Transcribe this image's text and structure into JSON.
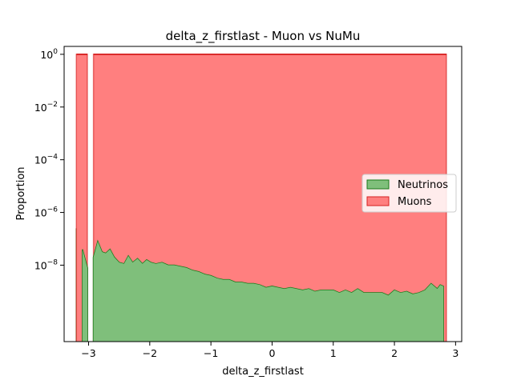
{
  "chart_data": {
    "type": "area",
    "title": "delta_z_firstlast - Muon vs NuMu",
    "xlabel": "delta_z_firstlast",
    "ylabel": "Proportion",
    "xlim": [
      -3.4,
      3.1
    ],
    "ylim_exp": [
      -10.9,
      0.3
    ],
    "yscale": "log",
    "x_ticks": [
      -3,
      -2,
      -1,
      0,
      1,
      2,
      3
    ],
    "x_tick_labels": [
      "−3",
      "−2",
      "−1",
      "0",
      "1",
      "2",
      "3"
    ],
    "y_ticks_exp": [
      0,
      -2,
      -4,
      -6,
      -8
    ],
    "y_tick_labels": [
      {
        "base": "10",
        "exp": "0"
      },
      {
        "base": "10",
        "exp": "−2"
      },
      {
        "base": "10",
        "exp": "−4"
      },
      {
        "base": "10",
        "exp": "−6"
      },
      {
        "base": "10",
        "exp": "−8"
      }
    ],
    "grid": false,
    "legend_position": "center-right",
    "series": [
      {
        "name": "Neutrinos",
        "fill_color": "#7fbf7b",
        "line_color": "#1a7a1a",
        "segments": [
          [
            [
              -3.2,
              -6.6
            ]
          ],
          [
            [
              -3.1,
              -7.4
            ],
            [
              -3.02,
              -8.1
            ]
          ],
          [
            [
              -2.92,
              -7.7
            ],
            [
              -2.85,
              -7.1
            ],
            [
              -2.78,
              -7.5
            ],
            [
              -2.72,
              -7.55
            ],
            [
              -2.65,
              -7.4
            ],
            [
              -2.58,
              -7.7
            ],
            [
              -2.5,
              -7.9
            ],
            [
              -2.42,
              -7.95
            ],
            [
              -2.35,
              -7.65
            ],
            [
              -2.28,
              -7.9
            ],
            [
              -2.2,
              -7.75
            ],
            [
              -2.12,
              -7.95
            ],
            [
              -2.05,
              -7.8
            ],
            [
              -1.98,
              -7.9
            ],
            [
              -1.9,
              -7.95
            ],
            [
              -1.8,
              -7.9
            ],
            [
              -1.7,
              -8.0
            ],
            [
              -1.6,
              -8.0
            ],
            [
              -1.5,
              -8.05
            ],
            [
              -1.4,
              -8.1
            ],
            [
              -1.3,
              -8.2
            ],
            [
              -1.2,
              -8.25
            ],
            [
              -1.1,
              -8.35
            ],
            [
              -1.0,
              -8.4
            ],
            [
              -0.9,
              -8.5
            ],
            [
              -0.8,
              -8.55
            ],
            [
              -0.7,
              -8.55
            ],
            [
              -0.6,
              -8.65
            ],
            [
              -0.5,
              -8.65
            ],
            [
              -0.4,
              -8.7
            ],
            [
              -0.3,
              -8.7
            ],
            [
              -0.2,
              -8.75
            ],
            [
              -0.1,
              -8.85
            ],
            [
              0.0,
              -8.8
            ],
            [
              0.1,
              -8.85
            ],
            [
              0.2,
              -8.9
            ],
            [
              0.3,
              -8.85
            ],
            [
              0.4,
              -8.9
            ],
            [
              0.5,
              -8.95
            ],
            [
              0.6,
              -8.9
            ],
            [
              0.7,
              -9.0
            ],
            [
              0.8,
              -8.95
            ],
            [
              0.9,
              -8.95
            ],
            [
              1.0,
              -8.95
            ],
            [
              1.1,
              -9.05
            ],
            [
              1.2,
              -8.95
            ],
            [
              1.3,
              -9.05
            ],
            [
              1.4,
              -8.9
            ],
            [
              1.5,
              -9.05
            ],
            [
              1.6,
              -9.05
            ],
            [
              1.7,
              -9.05
            ],
            [
              1.8,
              -9.05
            ],
            [
              1.9,
              -9.15
            ],
            [
              2.0,
              -8.95
            ],
            [
              2.1,
              -9.05
            ],
            [
              2.2,
              -9.0
            ],
            [
              2.3,
              -9.1
            ],
            [
              2.4,
              -9.05
            ],
            [
              2.5,
              -8.95
            ],
            [
              2.6,
              -8.7
            ],
            [
              2.7,
              -8.9
            ],
            [
              2.75,
              -8.75
            ],
            [
              2.8,
              -8.8
            ]
          ]
        ]
      },
      {
        "name": "Muons",
        "fill_color": "#ff7f7f",
        "line_color": "#d62020",
        "segments": [
          [
            [
              -3.2,
              0.0
            ],
            [
              -3.02,
              0.0
            ]
          ],
          [
            [
              -2.92,
              0.0
            ],
            [
              2.85,
              0.0
            ]
          ]
        ]
      }
    ]
  }
}
